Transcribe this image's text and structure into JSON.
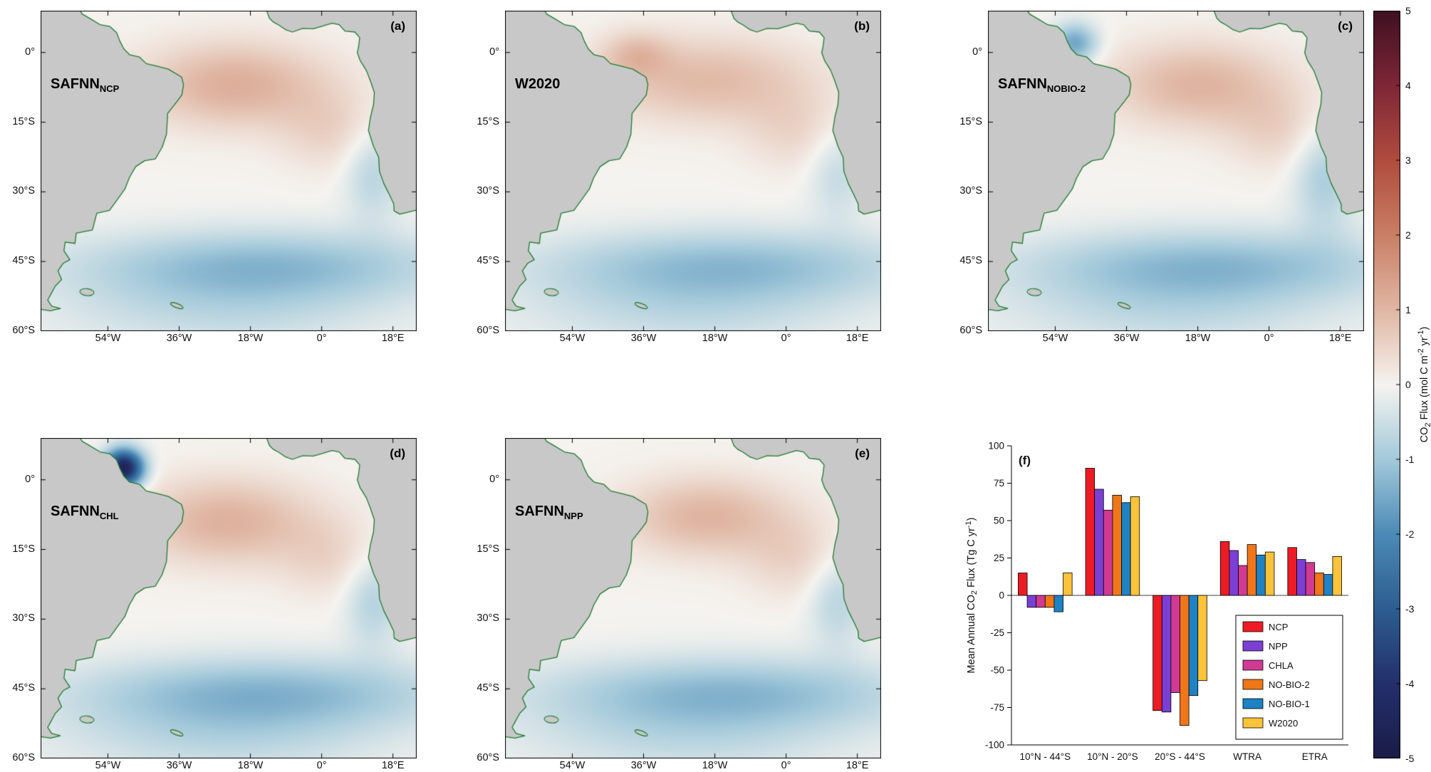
{
  "figure": {
    "background": "#ffffff",
    "land_color": "#c8c8c8",
    "coast_color": "#1f7a33"
  },
  "colormap": {
    "range": [
      -5,
      5
    ],
    "stops": [
      {
        "t": 0.0,
        "c": "#1a1c47"
      },
      {
        "t": 0.1,
        "c": "#232f6b"
      },
      {
        "t": 0.2,
        "c": "#2d5d90"
      },
      {
        "t": 0.3,
        "c": "#4b8ab6"
      },
      {
        "t": 0.4,
        "c": "#a3c9da"
      },
      {
        "t": 0.5,
        "c": "#f5f3ef"
      },
      {
        "t": 0.6,
        "c": "#e0b7a4"
      },
      {
        "t": 0.7,
        "c": "#c97f66"
      },
      {
        "t": 0.8,
        "c": "#b04c3e"
      },
      {
        "t": 0.9,
        "c": "#7e2737"
      },
      {
        "t": 1.0,
        "c": "#3f1021"
      }
    ]
  },
  "map_axes": {
    "lon_range": [
      -71,
      24
    ],
    "lat_range": [
      -60,
      9
    ],
    "x_ticks": [
      {
        "v": -54,
        "label": "54°W"
      },
      {
        "v": -36,
        "label": "36°W"
      },
      {
        "v": -18,
        "label": "18°W"
      },
      {
        "v": 0,
        "label": "0°"
      },
      {
        "v": 18,
        "label": "18°E"
      }
    ],
    "y_ticks": [
      {
        "v": 0,
        "label": "0°"
      },
      {
        "v": -15,
        "label": "15°S"
      },
      {
        "v": -30,
        "label": "30°S"
      },
      {
        "v": -45,
        "label": "45°S"
      },
      {
        "v": -60,
        "label": "60°S"
      }
    ]
  },
  "panels": [
    {
      "corner_label": "(a)",
      "name_base": "SAFNN",
      "name_sub": "NCP",
      "field": [
        {
          "lon": -22,
          "lat": -7,
          "slon": 17,
          "slat": 6.5,
          "amp": 1.15
        },
        {
          "lon": 2,
          "lat": -17,
          "slon": 9,
          "slat": 6,
          "amp": 0.5
        },
        {
          "lon": -15,
          "lat": -46,
          "slon": 34,
          "slat": 5.5,
          "amp": -1.25
        },
        {
          "lon": -25,
          "lat": -56,
          "slon": 30,
          "slat": 6,
          "amp": -0.55
        },
        {
          "lon": 13,
          "lat": -26,
          "slon": 5,
          "slat": 7,
          "amp": -0.75
        }
      ]
    },
    {
      "corner_label": "(b)",
      "name_base": "W2020",
      "name_sub": "",
      "field": [
        {
          "lon": -20,
          "lat": -6,
          "slon": 19,
          "slat": 6.5,
          "amp": 0.95
        },
        {
          "lon": -38,
          "lat": -0.5,
          "slon": 6,
          "slat": 3.5,
          "amp": 0.7
        },
        {
          "lon": 2,
          "lat": -17,
          "slon": 9,
          "slat": 6,
          "amp": 0.45
        },
        {
          "lon": -15,
          "lat": -46,
          "slon": 34,
          "slat": 5.5,
          "amp": -1.2
        },
        {
          "lon": -25,
          "lat": -56,
          "slon": 30,
          "slat": 6,
          "amp": -0.55
        },
        {
          "lon": 13,
          "lat": -26,
          "slon": 5,
          "slat": 7,
          "amp": -0.6
        }
      ]
    },
    {
      "corner_label": "(c)",
      "name_base": "SAFNN",
      "name_sub": "NOBIO-2",
      "field": [
        {
          "lon": -18,
          "lat": -7,
          "slon": 16,
          "slat": 6.5,
          "amp": 1.05
        },
        {
          "lon": -49,
          "lat": 2,
          "slon": 4,
          "slat": 3,
          "amp": -1.6
        },
        {
          "lon": 2,
          "lat": -17,
          "slon": 9,
          "slat": 6,
          "amp": 0.5
        },
        {
          "lon": -15,
          "lat": -46,
          "slon": 34,
          "slat": 5.5,
          "amp": -1.25
        },
        {
          "lon": -25,
          "lat": -56,
          "slon": 30,
          "slat": 6,
          "amp": -0.55
        },
        {
          "lon": 14,
          "lat": -27,
          "slon": 5.5,
          "slat": 8,
          "amp": -0.9
        }
      ]
    },
    {
      "corner_label": "(d)",
      "name_base": "SAFNN",
      "name_sub": "CHL",
      "field": [
        {
          "lon": -24,
          "lat": -9,
          "slon": 16,
          "slat": 6.5,
          "amp": 1.1
        },
        {
          "lon": -50,
          "lat": 2.5,
          "slon": 3.5,
          "slat": 2.8,
          "amp": -4.6
        },
        {
          "lon": 2,
          "lat": -17,
          "slon": 9,
          "slat": 6,
          "amp": 0.45
        },
        {
          "lon": -15,
          "lat": -46,
          "slon": 34,
          "slat": 5.5,
          "amp": -1.3
        },
        {
          "lon": -25,
          "lat": -56,
          "slon": 30,
          "slat": 6,
          "amp": -0.6
        },
        {
          "lon": 13,
          "lat": -26,
          "slon": 5,
          "slat": 7,
          "amp": -0.8
        }
      ]
    },
    {
      "corner_label": "(e)",
      "name_base": "SAFNN",
      "name_sub": "NPP",
      "field": [
        {
          "lon": -20,
          "lat": -8,
          "slon": 15,
          "slat": 6,
          "amp": 1.05
        },
        {
          "lon": 2,
          "lat": -17,
          "slon": 9,
          "slat": 6,
          "amp": 0.5
        },
        {
          "lon": -15,
          "lat": -46,
          "slon": 34,
          "slat": 5.5,
          "amp": -1.25
        },
        {
          "lon": -25,
          "lat": -56,
          "slon": 30,
          "slat": 6,
          "amp": -0.55
        },
        {
          "lon": 13,
          "lat": -26,
          "slon": 5,
          "slat": 7,
          "amp": -0.75
        }
      ]
    }
  ],
  "colorbar": {
    "ticks": [
      5,
      4,
      3,
      2,
      1,
      0,
      -1,
      -2,
      -3,
      -4,
      -5
    ],
    "label_parts": {
      "p1": "CO",
      "s1": "2",
      "p2": " Flux (mol C m",
      "u1": "-2",
      "p3": " yr",
      "u2": "-1",
      "p4": ")"
    }
  },
  "chart_data": {
    "type": "bar",
    "panel_label": "(f)",
    "categories": [
      "10°N - 44°S",
      "10°N - 20°S",
      "20°S - 44°S",
      "WTRA",
      "ETRA"
    ],
    "series": [
      {
        "name": "NCP",
        "color": "#ed1c24",
        "values": [
          15,
          85,
          -77,
          36,
          32
        ]
      },
      {
        "name": "NPP",
        "color": "#7b3fd4",
        "values": [
          -8,
          71,
          -78,
          30,
          24
        ]
      },
      {
        "name": "CHLA",
        "color": "#d03a92",
        "values": [
          -8,
          57,
          -65,
          20,
          22
        ]
      },
      {
        "name": "NO-BIO-2",
        "color": "#f0761a",
        "values": [
          -8,
          67,
          -87,
          34,
          15
        ]
      },
      {
        "name": "NO-BIO-1",
        "color": "#1e82c4",
        "values": [
          -11,
          62,
          -67,
          27,
          14
        ]
      },
      {
        "name": "W2020",
        "color": "#fbc33a",
        "values": [
          15,
          66,
          -57,
          29,
          26
        ]
      }
    ],
    "ylim": [
      -100,
      100
    ],
    "yticks": [
      -100,
      -75,
      -50,
      -25,
      0,
      25,
      50,
      75,
      100
    ],
    "ylabel_parts": {
      "p1": "Mean Annual CO",
      "s1": "2",
      "p2": " Flux (Tg C yr",
      "u1": "-1",
      "p3": ")"
    },
    "legend_position": "lower-right",
    "grid": false
  }
}
